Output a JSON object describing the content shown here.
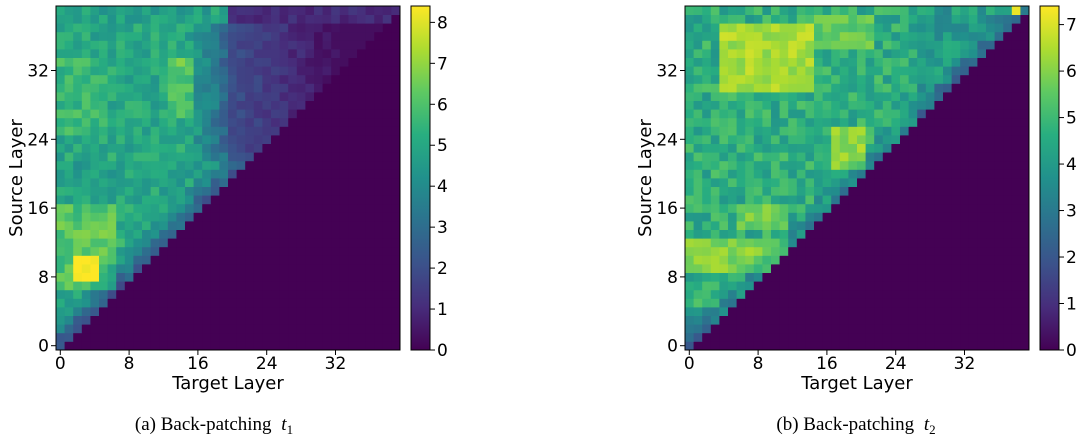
{
  "chart_data": [
    {
      "type": "heatmap",
      "caption": "(a) Back-patching",
      "caption_var": "t",
      "caption_sub": "1",
      "xlabel": "Target Layer",
      "ylabel": "Source Layer",
      "n_layers": 40,
      "x_ticks": [
        0,
        8,
        16,
        24,
        32
      ],
      "y_ticks": [
        0,
        8,
        16,
        24,
        32
      ],
      "colorbar_ticks": [
        0,
        1,
        2,
        3,
        4,
        5,
        6,
        7,
        8
      ],
      "vmin": 0,
      "vmax": 8.4,
      "mask": "cells with target layer > source layer are 0",
      "colormap": "viridis"
    },
    {
      "type": "heatmap",
      "caption": "(b) Back-patching",
      "caption_var": "t",
      "caption_sub": "2",
      "xlabel": "Target Layer",
      "ylabel": "Source Layer",
      "n_layers": 40,
      "x_ticks": [
        0,
        8,
        16,
        24,
        32
      ],
      "y_ticks": [
        0,
        8,
        16,
        24,
        32
      ],
      "colorbar_ticks": [
        0,
        1,
        2,
        3,
        4,
        5,
        6,
        7
      ],
      "vmin": 0,
      "vmax": 7.4,
      "mask": "cells with target layer > source layer are 0",
      "colormap": "viridis"
    }
  ]
}
